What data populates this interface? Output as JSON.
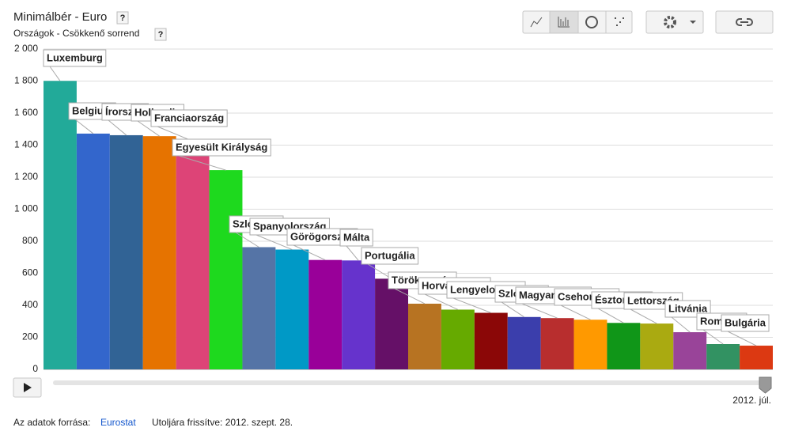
{
  "chart_data": {
    "type": "bar",
    "title": "Minimálbér - Euro",
    "subtitle": "Országok - Csökkenő sorrend",
    "help": "?",
    "categories": [
      "Luxemburg",
      "Belgium",
      "Írország",
      "Hollandia",
      "Franciaország",
      "Egyesült Királyság",
      "Szlovénia",
      "Spanyolország",
      "Görögország",
      "Málta",
      "Portugália",
      "Törökország",
      "Horvátország",
      "Lengyelország",
      "Szlovákia",
      "Magyarország",
      "Csehország",
      "Észtország",
      "Lettország",
      "Litvánia",
      "Románia",
      "Bulgária"
    ],
    "values": [
      1801,
      1472,
      1462,
      1456,
      1425,
      1244,
      763,
      748,
      683,
      680,
      566,
      410,
      373,
      353,
      327,
      320,
      310,
      290,
      286,
      232,
      158,
      148
    ],
    "colors": [
      "#22aa99",
      "#3366cc",
      "#316395",
      "#e67300",
      "#dd4477",
      "#1ed91e",
      "#5574a6",
      "#0099c6",
      "#990099",
      "#6633cc",
      "#651067",
      "#b77322",
      "#66aa00",
      "#8b0707",
      "#3b3eac",
      "#b82e2e",
      "#ff9900",
      "#109618",
      "#aaaa11",
      "#994499",
      "#329262",
      "#dc3912"
    ],
    "ylim": [
      0,
      2000
    ],
    "yticks": [
      0,
      200,
      400,
      600,
      800,
      {
        "value": 1000,
        "label": "1 000"
      },
      {
        "value": 1200,
        "label": "1 200"
      },
      {
        "value": 1400,
        "label": "1 400"
      },
      {
        "value": 1600,
        "label": "1 600"
      },
      {
        "value": 1800,
        "label": "1 800"
      },
      {
        "value": 2000,
        "label": "2 000"
      }
    ],
    "grid": true,
    "time_label": "2012. júl."
  },
  "footer": {
    "source_label": "Az adatok forrása:",
    "source_link": "Eurostat",
    "updated": "Utoljára frissítve: 2012. szept. 28."
  }
}
